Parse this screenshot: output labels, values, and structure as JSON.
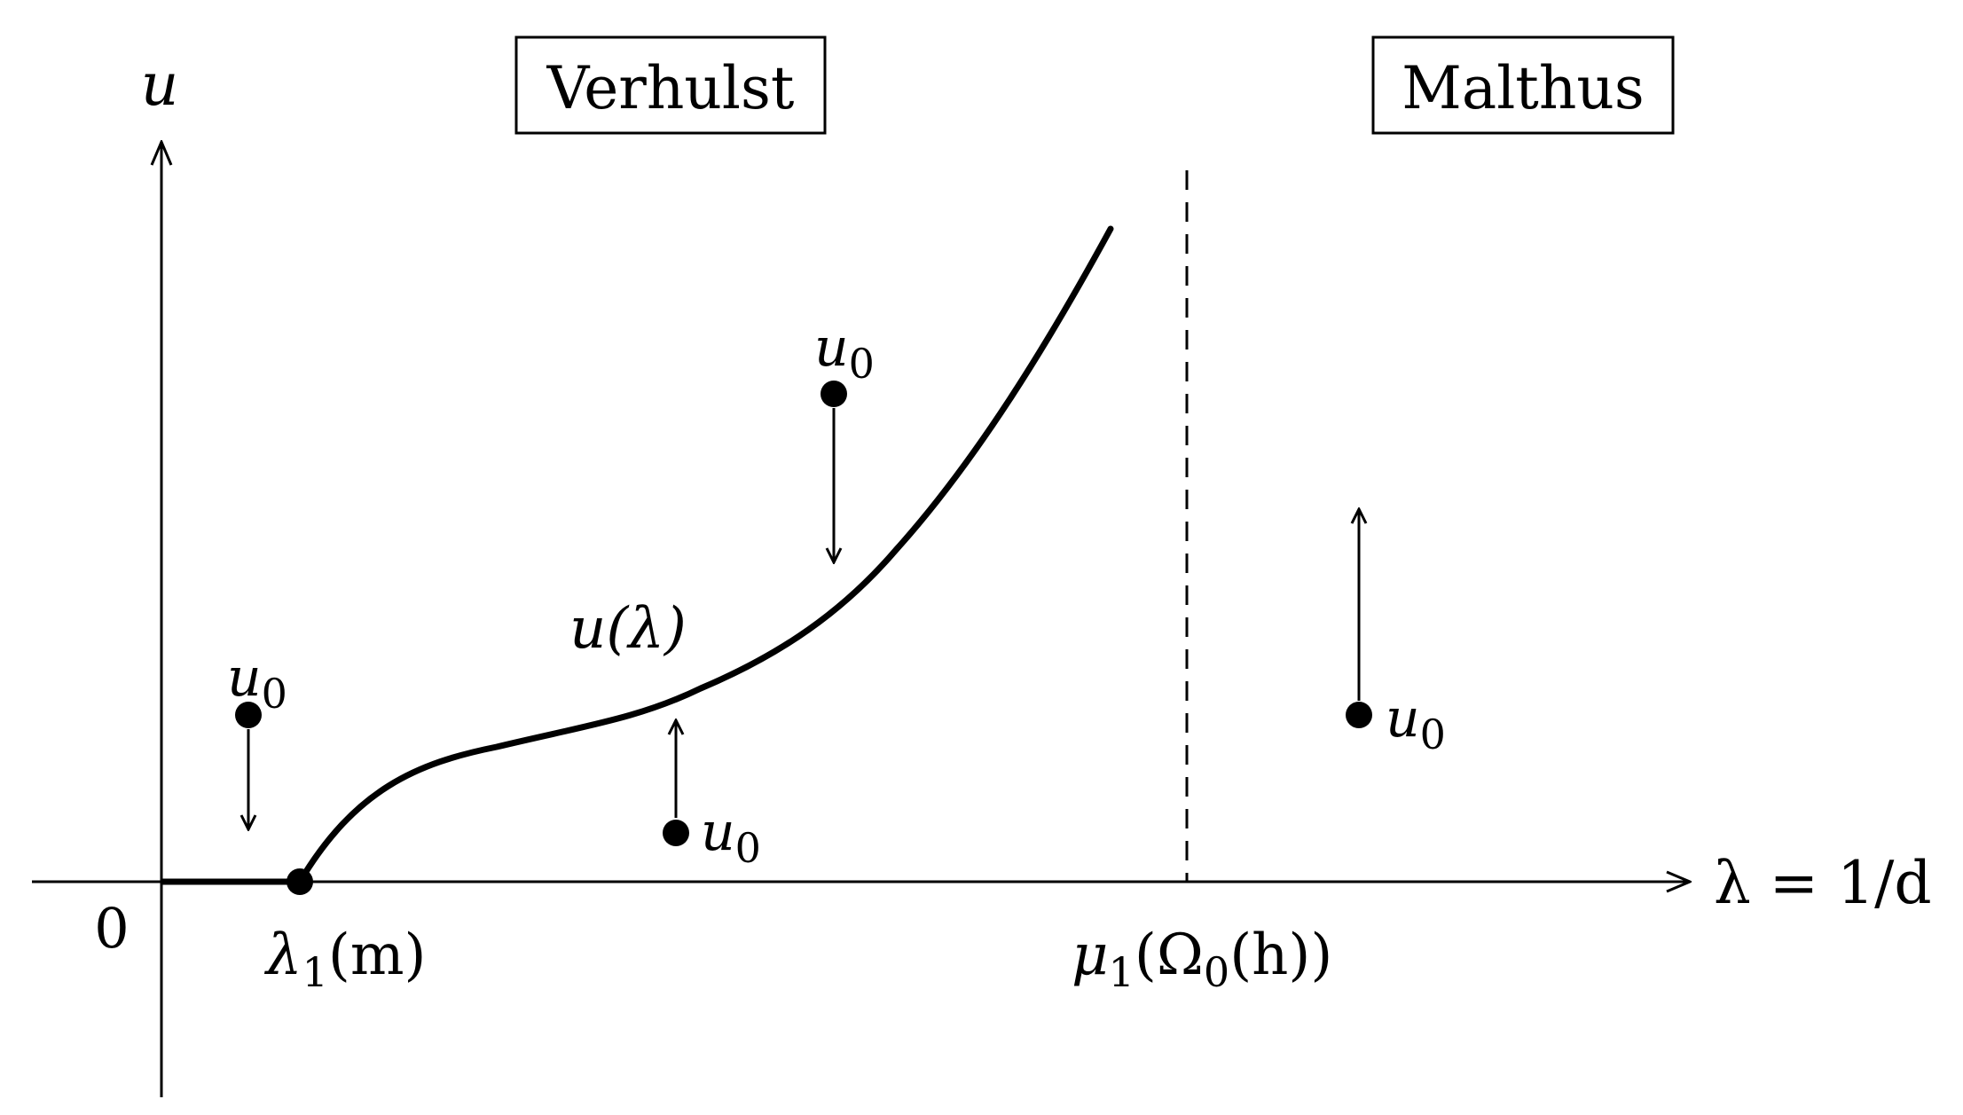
{
  "regions": {
    "left_label": "Verhulst",
    "right_label": "Malthus"
  },
  "axes": {
    "y_label": "u",
    "x_label": "λ = 1/d",
    "origin_label": "0"
  },
  "ticks": {
    "lambda1_symbol": "λ",
    "lambda1_sub": "1",
    "lambda1_arg": "(m)",
    "mu1_symbol": "μ",
    "mu1_sub": "1",
    "mu1_arg_open": "(Ω",
    "mu1_arg_sub": "0",
    "mu1_arg_rest": "(h))"
  },
  "curve": {
    "label": "u(λ)"
  },
  "initial_points": {
    "symbol": "u",
    "sub": "0"
  },
  "colors": {
    "ink": "#000000",
    "background": "#ffffff"
  }
}
